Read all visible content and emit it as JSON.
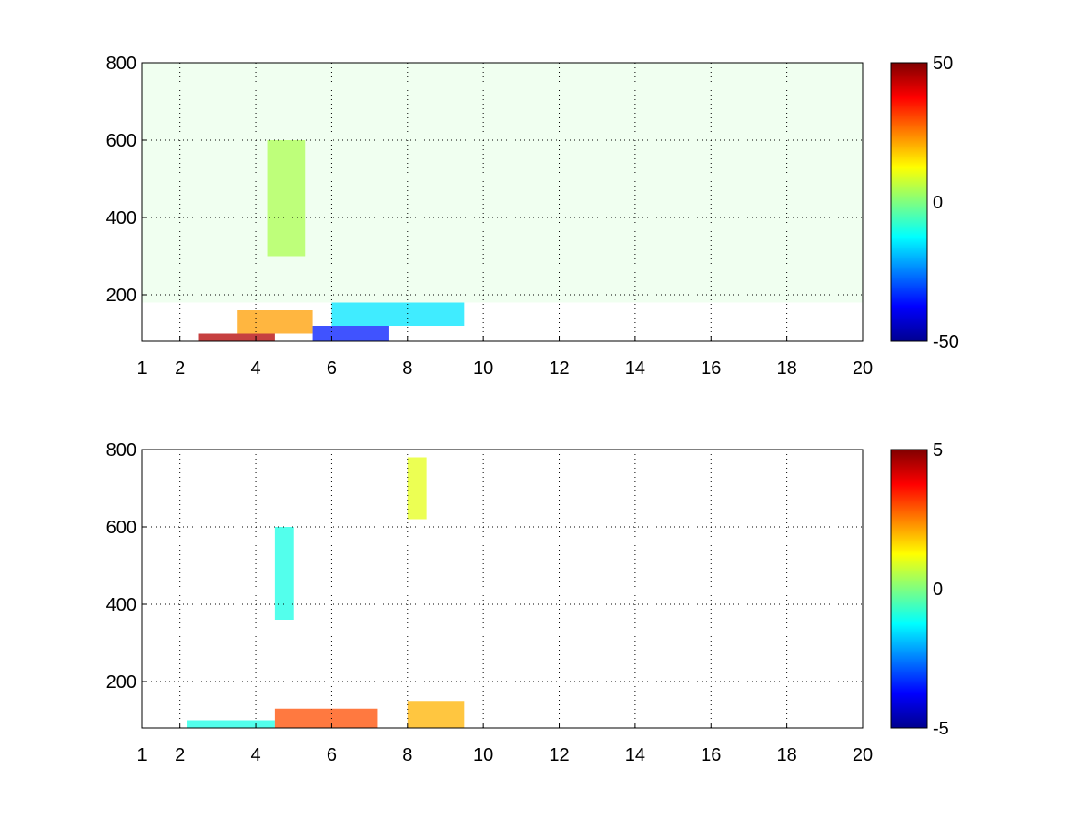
{
  "chart_data": [
    {
      "type": "heatmap",
      "xlim": [
        1,
        20
      ],
      "ylim": [
        80,
        800
      ],
      "x_ticks": [
        "1",
        "2",
        "4",
        "6",
        "8",
        "10",
        "12",
        "14",
        "16",
        "18",
        "20"
      ],
      "y_ticks": [
        "200",
        "400",
        "600",
        "800"
      ],
      "grid": true,
      "colorbar": {
        "min": -50,
        "max": 50,
        "ticks": [
          "50",
          "0",
          "-50"
        ],
        "colormap": "jet"
      },
      "value_regions": [
        {
          "x": [
            2.5,
            4.5
          ],
          "y": [
            80,
            100
          ],
          "value": 45
        },
        {
          "x": [
            3.5,
            5.5
          ],
          "y": [
            100,
            160
          ],
          "value": 22
        },
        {
          "x": [
            5.5,
            7.5
          ],
          "y": [
            80,
            120
          ],
          "value": -35
        },
        {
          "x": [
            6.0,
            9.5
          ],
          "y": [
            120,
            180
          ],
          "value": -15
        },
        {
          "x": [
            4.3,
            5.3
          ],
          "y": [
            300,
            600
          ],
          "value": 5
        },
        {
          "x": [
            1,
            20
          ],
          "y": [
            180,
            800
          ],
          "value": 0
        }
      ]
    },
    {
      "type": "heatmap",
      "xlim": [
        1,
        20
      ],
      "ylim": [
        80,
        800
      ],
      "x_ticks": [
        "1",
        "2",
        "4",
        "6",
        "8",
        "10",
        "12",
        "14",
        "16",
        "18",
        "20"
      ],
      "y_ticks": [
        "200",
        "400",
        "600",
        "800"
      ],
      "grid": true,
      "colorbar": {
        "min": -5,
        "max": 5,
        "ticks": [
          "5",
          "0",
          "-5"
        ],
        "colormap": "jet"
      },
      "value_regions": [
        {
          "x": [
            2.2,
            4.5
          ],
          "y": [
            80,
            100
          ],
          "value": -1
        },
        {
          "x": [
            4.5,
            7.2
          ],
          "y": [
            80,
            130
          ],
          "value": 3
        },
        {
          "x": [
            4.5,
            5.0
          ],
          "y": [
            360,
            600
          ],
          "value": -1
        },
        {
          "x": [
            8.0,
            8.5
          ],
          "y": [
            620,
            780
          ],
          "value": 1
        },
        {
          "x": [
            8.0,
            9.5
          ],
          "y": [
            80,
            150
          ],
          "value": 2
        }
      ]
    }
  ]
}
